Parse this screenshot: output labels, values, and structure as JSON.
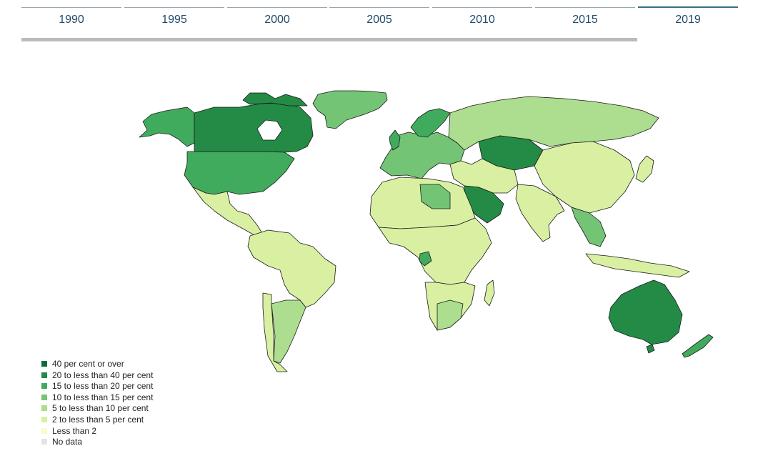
{
  "timeline": {
    "years": [
      "1990",
      "1995",
      "2000",
      "2005",
      "2010",
      "2015",
      "2019"
    ],
    "selected": "2019"
  },
  "legend": {
    "items": [
      {
        "label": "40 per cent or over",
        "color": "#0d6b3c"
      },
      {
        "label": "20 to less than 40 per cent",
        "color": "#238b45"
      },
      {
        "label": "15 to less than 20 per cent",
        "color": "#41ab5d"
      },
      {
        "label": "10 to less than 15 per cent",
        "color": "#74c476"
      },
      {
        "label": "5 to less than 10 per cent",
        "color": "#addd8e"
      },
      {
        "label": "2 to less than 5 per cent",
        "color": "#d9f0a3"
      },
      {
        "label": "Less than 2",
        "color": "#f7fcd0"
      },
      {
        "label": "No data",
        "color": "#e3e3e3"
      }
    ]
  },
  "colors": {
    "border": "#1a1a1a",
    "tab_text": "#1f4a6b"
  }
}
